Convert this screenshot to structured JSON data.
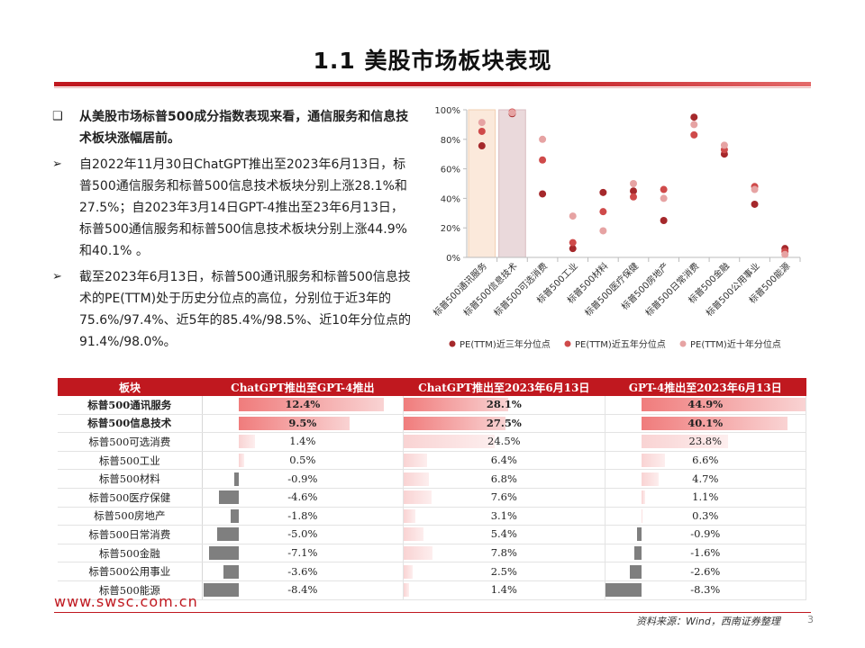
{
  "title": "1.1 美股市场板块表现",
  "bullets": [
    {
      "marker": "❑",
      "text": "从美股市场标普500成分指数表现来看，通信服务和信息技术板块涨幅居前。",
      "bold": true
    },
    {
      "marker": "➢",
      "text": "自2022年11月30日ChatGPT推出至2023年6月13日，标普500通信服务和标普500信息技术板块分别上涨28.1%和27.5%；自2023年3月14日GPT-4推出至23年6月13日，标普500通信服务和标普500信息技术板块分别上涨44.9%和40.1% 。",
      "bold": false
    },
    {
      "marker": "➢",
      "text": "截至2023年6月13日，标普500通讯服务和标普500信息技术的PE(TTM)处于历史分位点的高位，分别位于近3年的75.6%/97.4%、近5年的85.4%/98.5%、近10年分位点的91.4%/98.0%。",
      "bold": false
    }
  ],
  "chart_data": {
    "type": "scatter",
    "categories": [
      "标普500通讯服务",
      "标普500信息技术",
      "标普500可选消费",
      "标普500工业",
      "标普500材料",
      "标普500医疗保健",
      "标普500房地产",
      "标普500日常消费",
      "标普500金融",
      "标普500公用事业",
      "标普500能源"
    ],
    "y_ticks": [
      "0%",
      "20%",
      "40%",
      "60%",
      "80%",
      "100%"
    ],
    "ylim": [
      0,
      100
    ],
    "highlight_categories": [
      0,
      1
    ],
    "series": [
      {
        "name": "PE(TTM)近三年分位点",
        "color": "#a5282b",
        "values": [
          75.6,
          97.4,
          43,
          6,
          44,
          45,
          25,
          95,
          70,
          36,
          6
        ]
      },
      {
        "name": "PE(TTM)近五年分位点",
        "color": "#cf4a4a",
        "values": [
          85.4,
          98.5,
          66,
          10,
          31,
          41,
          46,
          83,
          73,
          48,
          4
        ]
      },
      {
        "name": "PE(TTM)近十年分位点",
        "color": "#e6a3a3",
        "values": [
          91.4,
          98.0,
          80,
          28,
          18,
          50,
          40,
          90,
          76,
          46,
          2
        ]
      }
    ]
  },
  "table": {
    "headers": [
      "板块",
      "ChatGPT推出至GPT-4推出",
      "ChatGPT推出至2023年6月13日",
      "GPT-4推出至2023年6月13日"
    ],
    "rows": [
      {
        "name": "标普500通讯服务",
        "bold": true,
        "values": [
          12.4,
          28.1,
          44.9
        ],
        "labels": [
          "12.4%",
          "28.1%",
          "44.9%"
        ]
      },
      {
        "name": "标普500信息技术",
        "bold": true,
        "values": [
          9.5,
          27.5,
          40.1
        ],
        "labels": [
          "9.5%",
          "27.5%",
          "40.1%"
        ]
      },
      {
        "name": "标普500可选消费",
        "bold": false,
        "values": [
          1.4,
          24.5,
          23.8
        ],
        "labels": [
          "1.4%",
          "24.5%",
          "23.8%"
        ]
      },
      {
        "name": "标普500工业",
        "bold": false,
        "values": [
          0.5,
          6.4,
          6.6
        ],
        "labels": [
          "0.5%",
          "6.4%",
          "6.6%"
        ]
      },
      {
        "name": "标普500材料",
        "bold": false,
        "values": [
          -0.9,
          6.8,
          4.7
        ],
        "labels": [
          "-0.9%",
          "6.8%",
          "4.7%"
        ]
      },
      {
        "name": "标普500医疗保健",
        "bold": false,
        "values": [
          -4.6,
          7.6,
          1.1
        ],
        "labels": [
          "-4.6%",
          "7.6%",
          "1.1%"
        ]
      },
      {
        "name": "标普500房地产",
        "bold": false,
        "values": [
          -1.8,
          3.1,
          0.3
        ],
        "labels": [
          "-1.8%",
          "3.1%",
          "0.3%"
        ]
      },
      {
        "name": "标普500日常消费",
        "bold": false,
        "values": [
          -5.0,
          5.4,
          -0.9
        ],
        "labels": [
          "-5.0%",
          "5.4%",
          "-0.9%"
        ]
      },
      {
        "name": "标普500金融",
        "bold": false,
        "values": [
          -7.1,
          7.8,
          -1.6
        ],
        "labels": [
          "-7.1%",
          "7.8%",
          "-1.6%"
        ]
      },
      {
        "name": "标普500公用事业",
        "bold": false,
        "values": [
          -3.6,
          2.5,
          -2.6
        ],
        "labels": [
          "-3.6%",
          "2.5%",
          "-2.6%"
        ]
      },
      {
        "name": "标普500能源",
        "bold": false,
        "values": [
          -8.4,
          1.4,
          -8.3
        ],
        "labels": [
          "-8.4%",
          "1.4%",
          "-8.3%"
        ]
      }
    ]
  },
  "footer": {
    "url": "www.swsc.com.cn",
    "source": "资料来源：Wind，西南证券整理",
    "page": "3"
  },
  "colors": {
    "accent": "#c0181f",
    "negative_bar": "#7f7f7f",
    "positive_bar_strong": "#f07c7c",
    "positive_bar_light": "#f9d3d3"
  }
}
